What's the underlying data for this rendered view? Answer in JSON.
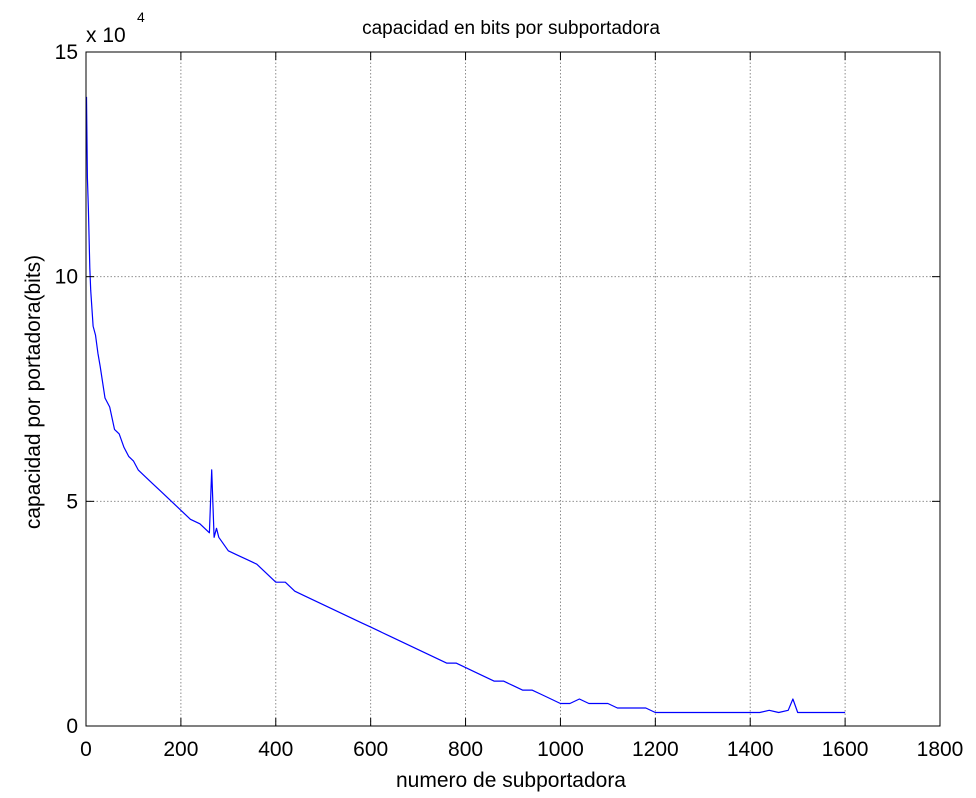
{
  "chart_data": {
    "type": "line",
    "title": "capacidad en bits por subportadora",
    "xlabel": "numero de subportadora",
    "ylabel": "capacidad por portadora(bits)",
    "y_scale_note": {
      "base": "x 10",
      "exponent": "4"
    },
    "xlim": [
      0,
      1800
    ],
    "ylim": [
      0,
      15
    ],
    "xticks": [
      0,
      200,
      400,
      600,
      800,
      1000,
      1200,
      1400,
      1600,
      1800
    ],
    "yticks": [
      0,
      5,
      10,
      15
    ],
    "x_tick_labels": [
      "0",
      "200",
      "400",
      "600",
      "800",
      "1000",
      "1200",
      "1400",
      "1600",
      "1800"
    ],
    "y_tick_labels": [
      "0",
      "5",
      "10",
      "15"
    ],
    "grid": true,
    "line_color": "#0000ff",
    "series": [
      {
        "x": [
          1,
          3,
          5,
          8,
          10,
          15,
          20,
          25,
          30,
          40,
          50,
          60,
          70,
          80,
          90,
          100,
          110,
          120,
          140,
          160,
          180,
          200,
          220,
          240,
          260,
          265,
          270,
          275,
          280,
          300,
          320,
          340,
          360,
          380,
          400,
          420,
          440,
          460,
          480,
          500,
          520,
          540,
          560,
          580,
          600,
          620,
          640,
          660,
          680,
          700,
          720,
          740,
          760,
          780,
          800,
          820,
          840,
          860,
          880,
          900,
          920,
          940,
          960,
          980,
          1000,
          1020,
          1040,
          1060,
          1080,
          1100,
          1120,
          1140,
          1160,
          1180,
          1200,
          1220,
          1240,
          1260,
          1280,
          1300,
          1320,
          1340,
          1360,
          1380,
          1400,
          1420,
          1440,
          1460,
          1480,
          1490,
          1500,
          1520,
          1540,
          1560,
          1580,
          1600
        ],
        "y": [
          14.0,
          12.2,
          11.5,
          10.2,
          9.7,
          8.9,
          8.7,
          8.3,
          8.0,
          7.3,
          7.1,
          6.6,
          6.5,
          6.2,
          6.0,
          5.9,
          5.7,
          5.6,
          5.4,
          5.2,
          5.0,
          4.8,
          4.6,
          4.5,
          4.3,
          5.7,
          4.2,
          4.4,
          4.2,
          3.9,
          3.8,
          3.7,
          3.6,
          3.4,
          3.2,
          3.2,
          3.0,
          2.9,
          2.8,
          2.7,
          2.6,
          2.5,
          2.4,
          2.3,
          2.2,
          2.1,
          2.0,
          1.9,
          1.8,
          1.7,
          1.6,
          1.5,
          1.4,
          1.4,
          1.3,
          1.2,
          1.1,
          1.0,
          1.0,
          0.9,
          0.8,
          0.8,
          0.7,
          0.6,
          0.5,
          0.5,
          0.6,
          0.5,
          0.5,
          0.5,
          0.4,
          0.4,
          0.4,
          0.4,
          0.3,
          0.3,
          0.3,
          0.3,
          0.3,
          0.3,
          0.3,
          0.3,
          0.3,
          0.3,
          0.3,
          0.3,
          0.35,
          0.3,
          0.35,
          0.6,
          0.3,
          0.3,
          0.3,
          0.3,
          0.3,
          0.3
        ]
      }
    ]
  }
}
